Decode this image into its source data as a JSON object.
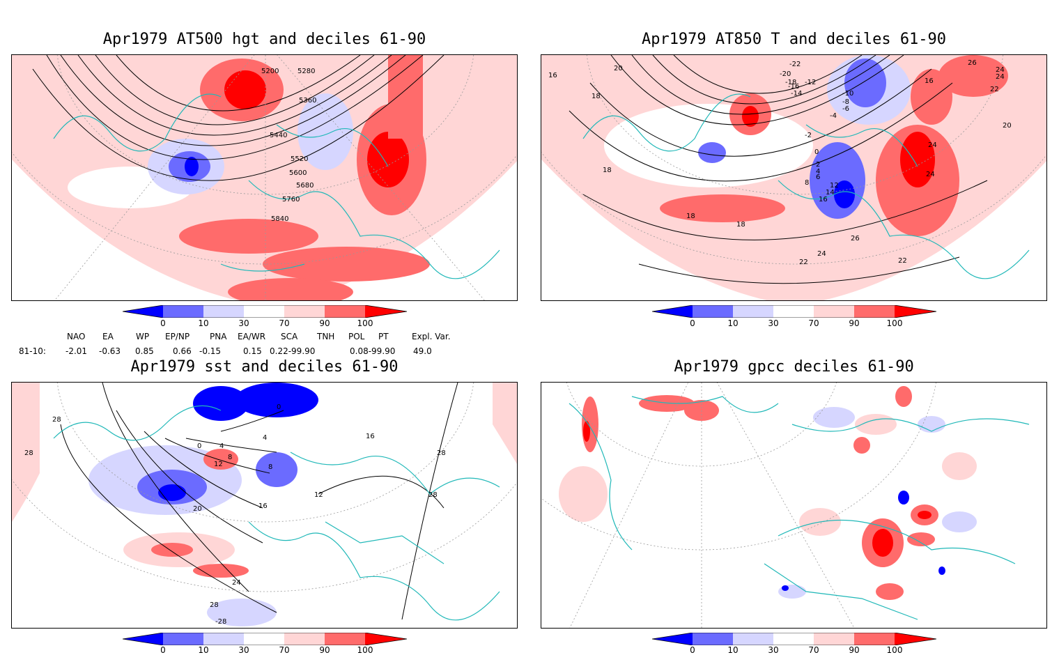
{
  "panels": [
    {
      "title": "Apr1979 AT500 hgt and deciles 61-90",
      "contour_labels": [
        "5200",
        "5280",
        "5360",
        "5440",
        "5520",
        "5600",
        "5680",
        "5760",
        "5840"
      ]
    },
    {
      "title": "Apr1979 AT850 T and deciles 61-90",
      "contour_labels": [
        "16",
        "20",
        "18",
        "18",
        "-22",
        "-20",
        "-18",
        "-16",
        "-14",
        "-12",
        "-10",
        "-8",
        "-6",
        "-4",
        "-2",
        "0",
        "2",
        "4",
        "6",
        "8",
        "12",
        "14",
        "16",
        "18",
        "22",
        "24",
        "26",
        "24",
        "22",
        "20",
        "18",
        "16",
        "24",
        "24",
        "26",
        "24",
        "22"
      ]
    },
    {
      "title": "Apr1979 sst and deciles 61-90",
      "contour_labels": [
        "28",
        "28",
        "0",
        "4",
        "8",
        "12",
        "16",
        "20",
        "24",
        "28",
        "-28",
        "0",
        "4",
        "8",
        "12",
        "16",
        "28",
        "28"
      ]
    },
    {
      "title": "Apr1979 gpcc deciles 61-90",
      "contour_labels": []
    }
  ],
  "colorbar": {
    "tick_labels": [
      "0",
      "10",
      "30",
      "70",
      "90",
      "100"
    ],
    "colors": [
      "#0000ff",
      "#6b6bff",
      "#d6d6ff",
      "#ffffff",
      "#ffd6d6",
      "#ff6b6b",
      "#ff0000"
    ]
  },
  "indices": {
    "headers": [
      "NAO",
      "EA",
      "WP",
      "EP/NP",
      "PNA",
      "EA/WR",
      "SCA",
      "TNH",
      "POL",
      "PT",
      "Expl. Var."
    ],
    "row_label": "81-10:",
    "values": [
      "-2.01",
      "-0.63",
      "0.85",
      "0.66",
      "-0.15",
      "0.15",
      "0.22-99.90",
      "0.08-99.90",
      "49.0"
    ]
  },
  "style": {
    "coast_color": "#20b8b8",
    "grid_color": "#999999"
  }
}
